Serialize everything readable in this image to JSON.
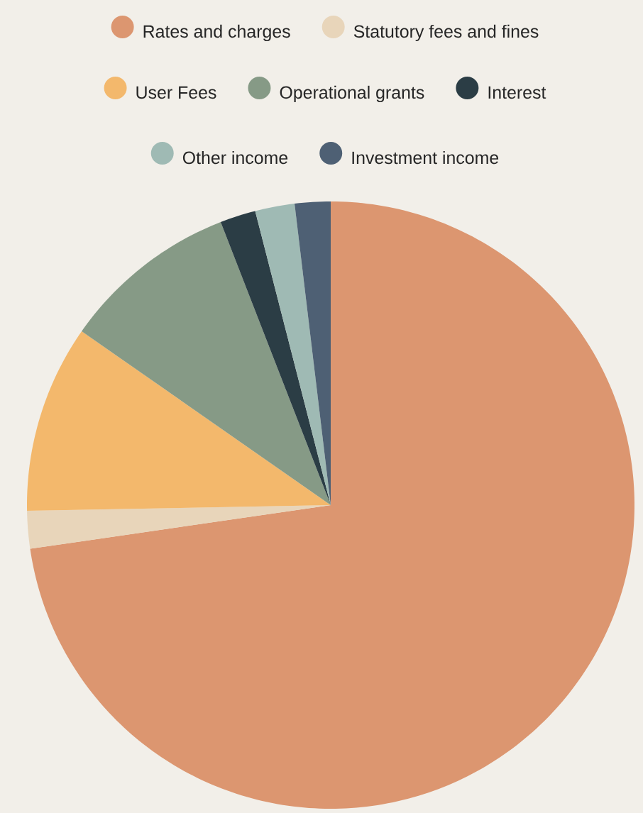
{
  "chart_data": {
    "type": "pie",
    "categories": [
      "Rates and charges",
      "Statutory fees and fines",
      "User Fees",
      "Operational grants",
      "Interest",
      "Other income",
      "Investment income"
    ],
    "values": [
      72.7,
      2.0,
      10.0,
      9.4,
      1.9,
      2.1,
      1.9
    ],
    "colors": [
      "#dc9670",
      "#e8d5ba",
      "#f3b86c",
      "#869a86",
      "#2b3d45",
      "#9fbab4",
      "#4e6074"
    ],
    "legend": "top"
  }
}
